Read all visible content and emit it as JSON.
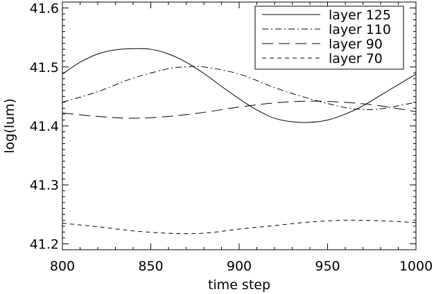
{
  "chart_data": {
    "type": "line",
    "title": "",
    "xlabel": "time step",
    "ylabel": "log(lum)",
    "xlim": [
      800,
      1000
    ],
    "ylim": [
      41.19,
      41.61
    ],
    "x_ticks": [
      800,
      850,
      900,
      950,
      1000
    ],
    "x_tick_labels": [
      "800",
      "850",
      "900",
      "950",
      "1000"
    ],
    "y_ticks": [
      41.2,
      41.3,
      41.4,
      41.5,
      41.6
    ],
    "y_tick_labels": [
      "41.2",
      "41.3",
      "41.4",
      "41.5",
      "41.6"
    ],
    "grid": false,
    "legend_position": "top-right",
    "series": [
      {
        "name": "layer 125",
        "line_style": "solid",
        "x": [
          800,
          810,
          820,
          830,
          840,
          850,
          860,
          870,
          880,
          890,
          900,
          910,
          920,
          930,
          940,
          950,
          960,
          970,
          980,
          990,
          1000
        ],
        "y": [
          41.488,
          41.508,
          41.522,
          41.529,
          41.531,
          41.53,
          41.522,
          41.508,
          41.489,
          41.467,
          41.446,
          41.427,
          41.413,
          41.407,
          41.406,
          41.41,
          41.42,
          41.434,
          41.452,
          41.47,
          41.488
        ]
      },
      {
        "name": "layer 110",
        "line_style": "dash-dot",
        "x": [
          800,
          820,
          840,
          860,
          870,
          880,
          900,
          920,
          940,
          960,
          970,
          980,
          1000
        ],
        "y": [
          41.44,
          41.458,
          41.481,
          41.497,
          41.5,
          41.5,
          41.488,
          41.465,
          41.446,
          41.431,
          41.428,
          41.429,
          41.44
        ]
      },
      {
        "name": "layer 90",
        "line_style": "long-dash",
        "x": [
          800,
          820,
          840,
          860,
          880,
          900,
          920,
          940,
          960,
          980,
          1000
        ],
        "y": [
          41.422,
          41.416,
          41.413,
          41.416,
          41.423,
          41.432,
          41.439,
          41.442,
          41.44,
          41.434,
          41.424
        ]
      },
      {
        "name": "layer 70",
        "line_style": "short-dash",
        "x": [
          800,
          820,
          840,
          860,
          880,
          900,
          920,
          940,
          960,
          980,
          1000
        ],
        "y": [
          41.235,
          41.229,
          41.222,
          41.218,
          41.218,
          41.225,
          41.231,
          41.237,
          41.24,
          41.239,
          41.236
        ]
      }
    ]
  }
}
